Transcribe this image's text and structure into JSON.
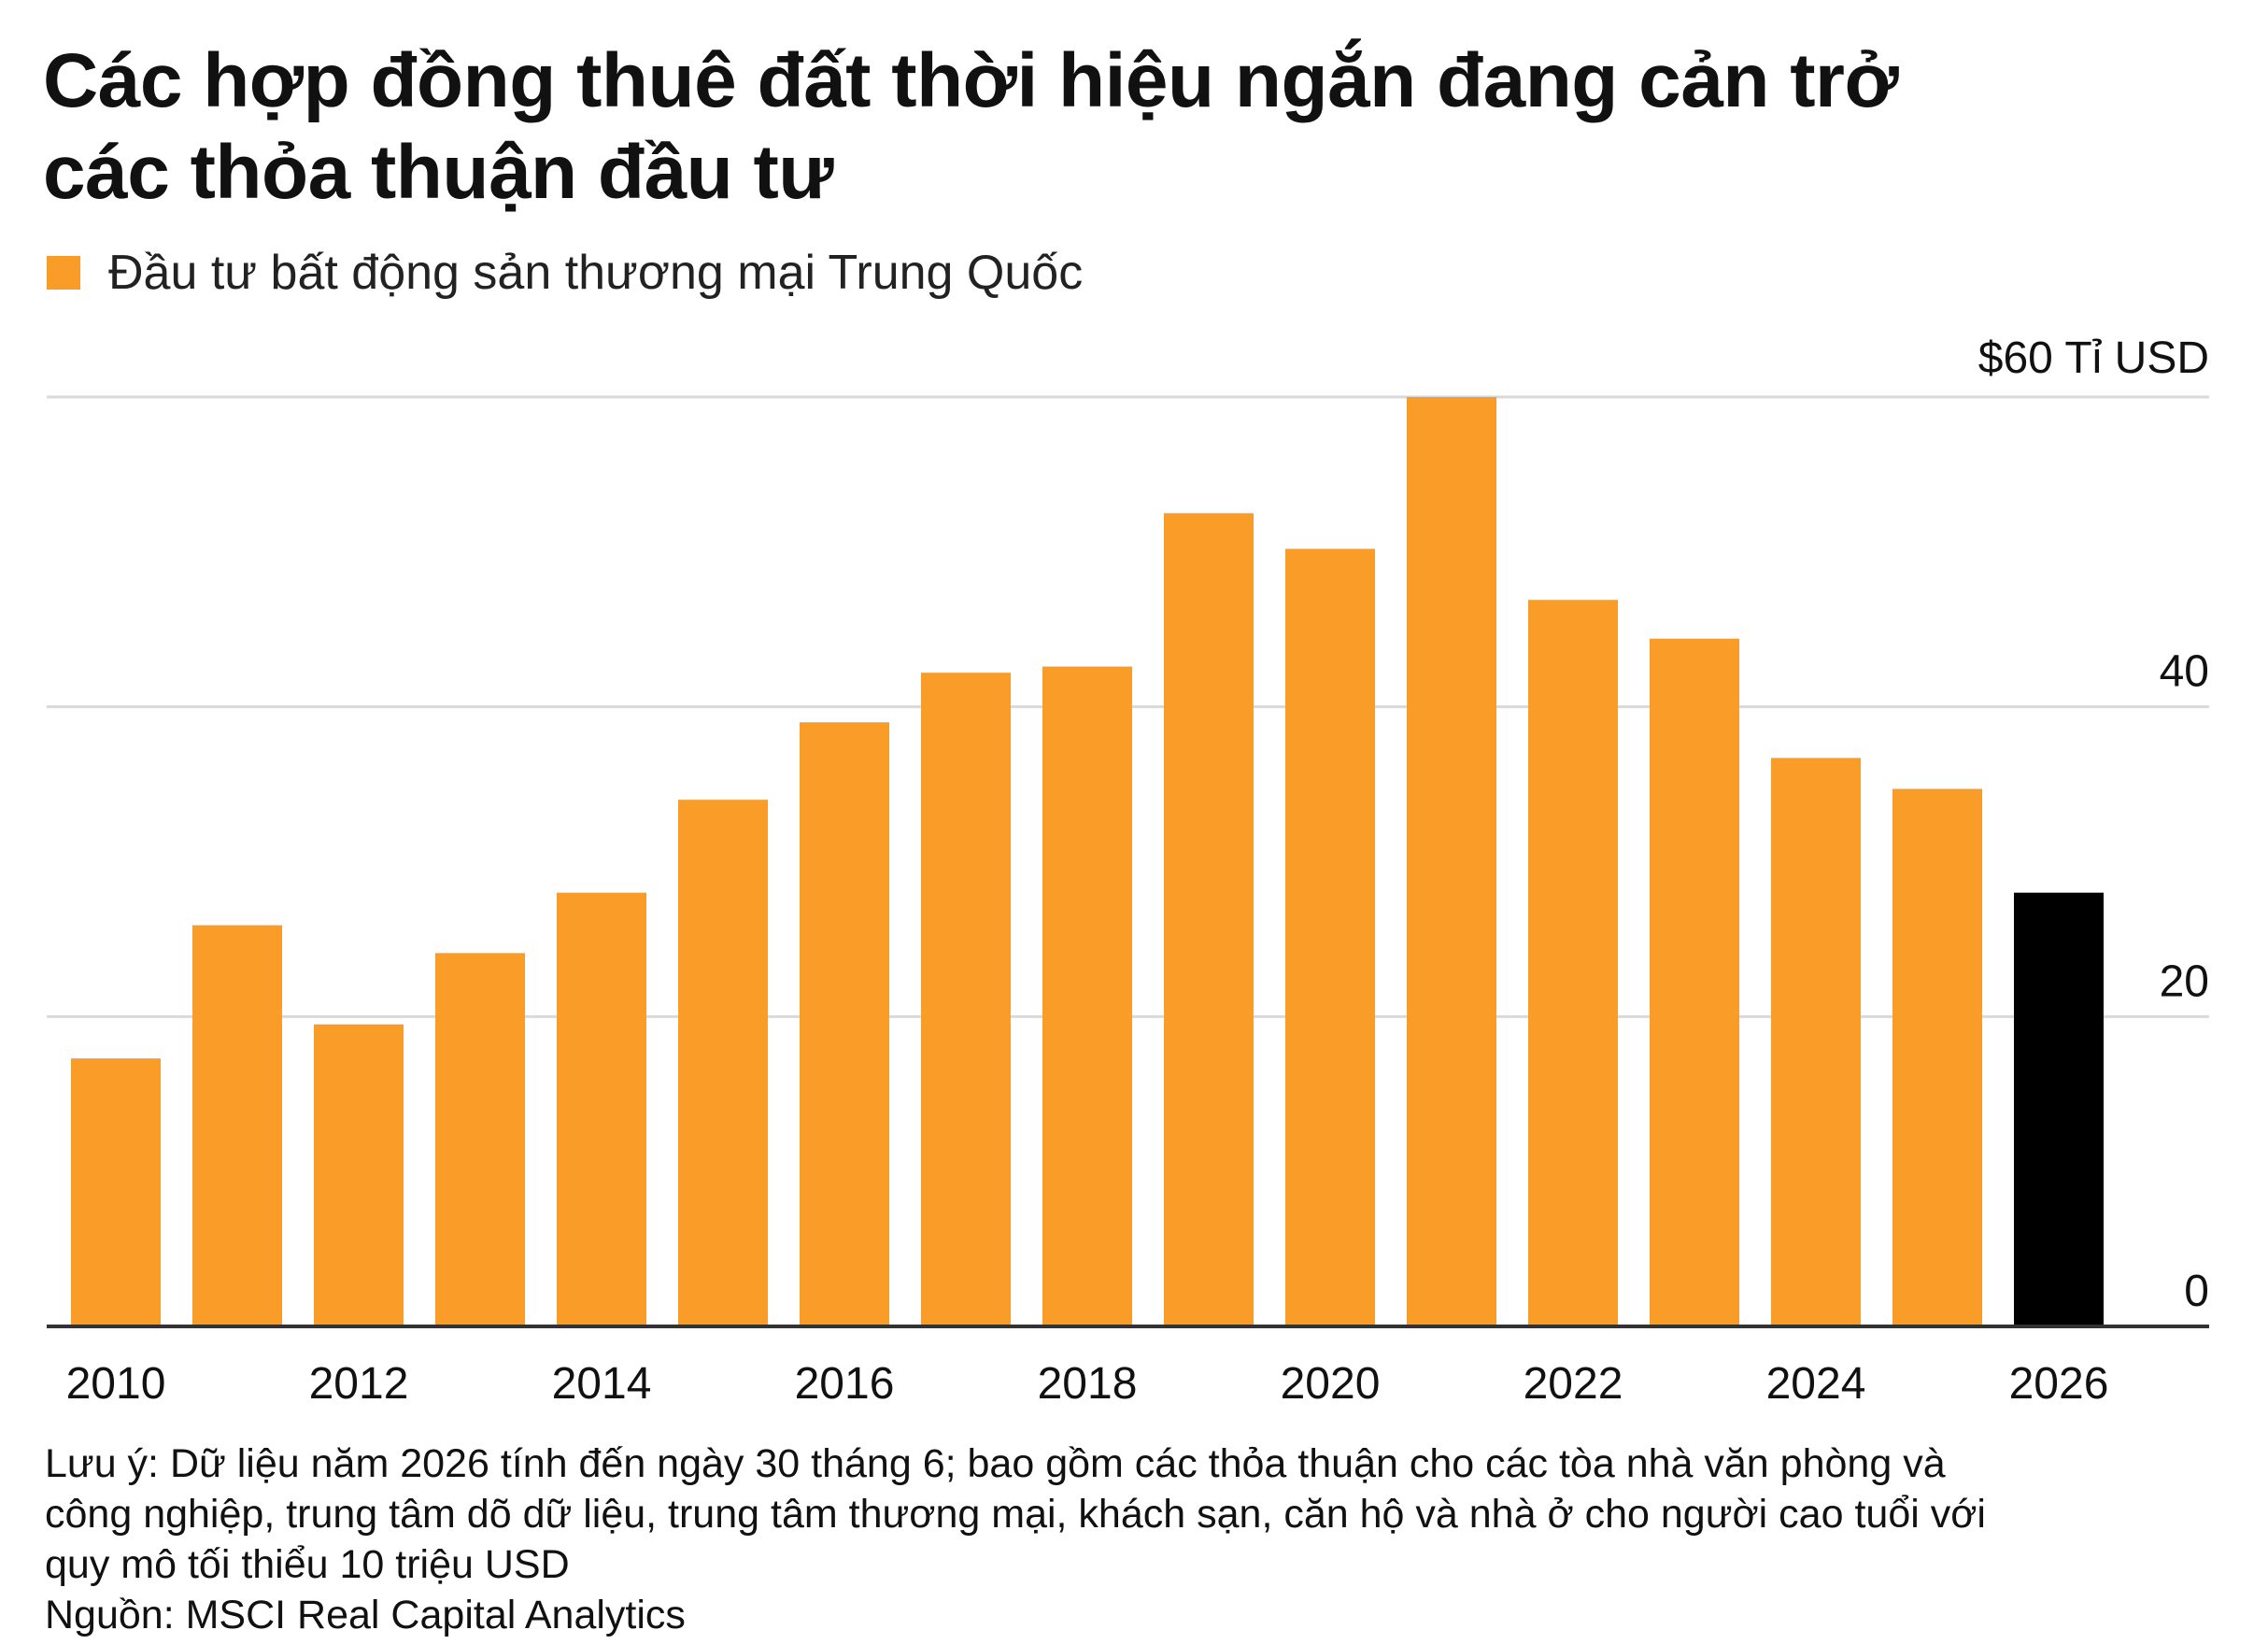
{
  "title_line1": "Các hợp đồng thuê đất thời hiệu ngắn đang cản trở",
  "title_line2": "các thỏa thuận đầu tư",
  "note_lines": [
    "Lưu ý: Dữ liệu năm 2026 tính đến ngày 30 tháng 6; bao gồm các thỏa thuận cho các tòa nhà văn phòng và",
    "công nghiệp, trung tâm dõ dữ liệu, trung tâm thương mại, khách sạn, căn hộ và nhà ở cho người cao tuổi với",
    "quy mô tối thiểu 10 triệu USD"
  ],
  "source": "Nguồn: MSCI Real Capital Analytics",
  "colors": {
    "bar": "#F99D28",
    "highlight": "#000000",
    "grid": "#d9d9d9",
    "axis": "#333333"
  },
  "chart_data": {
    "type": "bar",
    "legend": "Đầu tư bất động sản thương mại Trung Quốc",
    "legend_position": "top-left",
    "x": [
      2010,
      2011,
      2012,
      2013,
      2014,
      2015,
      2016,
      2017,
      2018,
      2019,
      2020,
      2021,
      2022,
      2023,
      2024,
      2025,
      2026
    ],
    "values": [
      17.3,
      25.9,
      19.5,
      24.1,
      28.0,
      34.0,
      39.0,
      42.2,
      42.6,
      52.5,
      50.2,
      60.0,
      46.9,
      44.4,
      36.7,
      34.7,
      28.0
    ],
    "highlight_index": 16,
    "x_tick_labels": [
      "2010",
      "2012",
      "2014",
      "2016",
      "2018",
      "2020",
      "2022",
      "2024",
      "2026"
    ],
    "y_tick_labels": [
      "0",
      "20",
      "40",
      "$60 Tỉ USD"
    ],
    "y_ticks": [
      0,
      20,
      40,
      60
    ],
    "ylim": [
      0,
      60
    ],
    "y_axis_side": "right",
    "grid": true
  }
}
